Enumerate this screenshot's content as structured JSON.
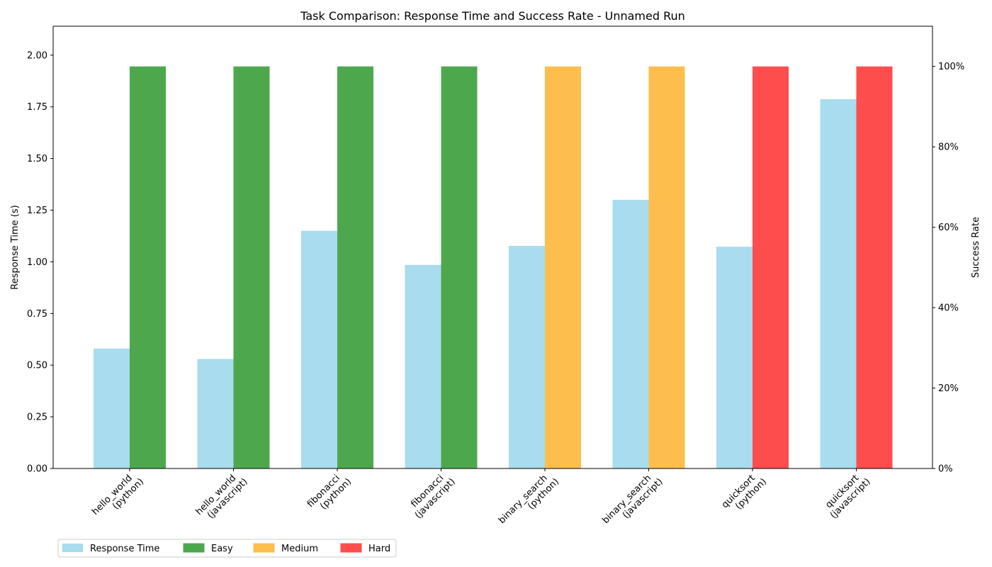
{
  "chart_data": {
    "type": "bar",
    "title": "Task Comparison: Response Time and Success Rate - Unnamed Run",
    "categories": [
      [
        "hello_world",
        "(python)"
      ],
      [
        "hello_world",
        "(javascript)"
      ],
      [
        "fibonacci",
        "(python)"
      ],
      [
        "fibonacci",
        "(javascript)"
      ],
      [
        "binary_search",
        "(python)"
      ],
      [
        "binary_search",
        "(javascript)"
      ],
      [
        "quicksort",
        "(python)"
      ],
      [
        "quicksort",
        "(javascript)"
      ]
    ],
    "difficulty": [
      "Easy",
      "Easy",
      "Easy",
      "Easy",
      "Medium",
      "Medium",
      "Hard",
      "Hard"
    ],
    "series": [
      {
        "name": "Response Time",
        "axis": "left",
        "color": "#a8dcee",
        "values": [
          0.58,
          0.53,
          1.15,
          0.985,
          1.077,
          1.3,
          1.073,
          1.787
        ]
      },
      {
        "name": "Success Rate",
        "axis": "right",
        "values": [
          1.0,
          1.0,
          1.0,
          1.0,
          1.0,
          1.0,
          1.0,
          1.0
        ]
      }
    ],
    "difficulty_colors": {
      "Easy": "#4da84d",
      "Medium": "#fdbe4d",
      "Hard": "#fe4d4d"
    },
    "ylabel": "Response Time (s)",
    "ylim": [
      0,
      2.14
    ],
    "yticks": [
      0.0,
      0.25,
      0.5,
      0.75,
      1.0,
      1.25,
      1.5,
      1.75,
      2.0
    ],
    "ytick_labels": [
      "0.00",
      "0.25",
      "0.50",
      "0.75",
      "1.00",
      "1.25",
      "1.50",
      "1.75",
      "2.00"
    ],
    "y2label": "Success Rate",
    "y2lim": [
      0,
      1.1
    ],
    "y2ticks": [
      0,
      0.2,
      0.4,
      0.6,
      0.8,
      1.0
    ],
    "y2tick_labels": [
      "0%",
      "20%",
      "40%",
      "60%",
      "80%",
      "100%"
    ],
    "grid": false,
    "legend_position": "bottom-left",
    "legend": [
      {
        "label": "Response Time",
        "color": "#a8dcee"
      },
      {
        "label": "Easy",
        "color": "#4da84d"
      },
      {
        "label": "Medium",
        "color": "#fdbe4d"
      },
      {
        "label": "Hard",
        "color": "#fe4d4d"
      }
    ]
  }
}
